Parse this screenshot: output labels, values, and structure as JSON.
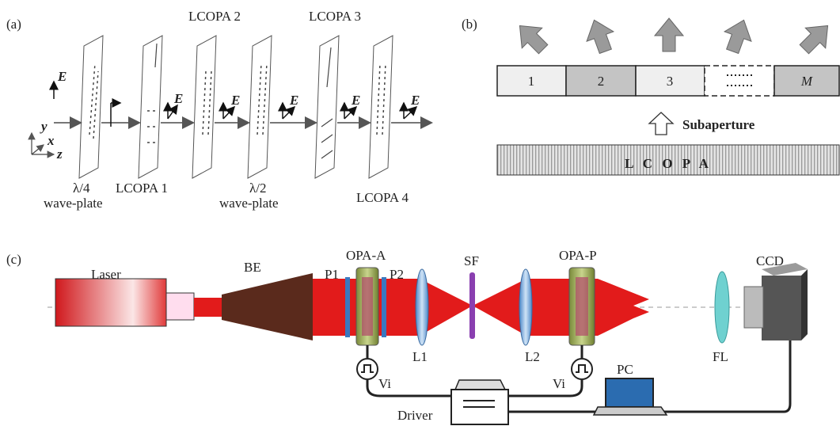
{
  "panel_a": {
    "label": "(a)",
    "field": "E",
    "axes": [
      "y",
      "x",
      "z"
    ],
    "quarter_plate": [
      "λ/4",
      "wave-plate"
    ],
    "half_plate": [
      "λ/2",
      "wave-plate"
    ],
    "lcopa": [
      "LCOPA 1",
      "LCOPA 2",
      "LCOPA 3",
      "LCOPA 4"
    ]
  },
  "panel_b": {
    "label": "(b)",
    "subapertures": [
      "1",
      "2",
      "3",
      "M"
    ],
    "annotation": "Subaperture",
    "device": "L C O P A"
  },
  "panel_c": {
    "label": "(c)",
    "components": {
      "laser": "Laser",
      "expander": "BE",
      "opa_a": "OPA-A",
      "p1": "P1",
      "p2": "P2",
      "filter": "SF",
      "opa_p": "OPA-P",
      "camera": "CCD",
      "l1": "L1",
      "l2": "L2",
      "fl": "FL",
      "pc": "PC",
      "driver": "Driver"
    },
    "voltage": "Vi"
  }
}
